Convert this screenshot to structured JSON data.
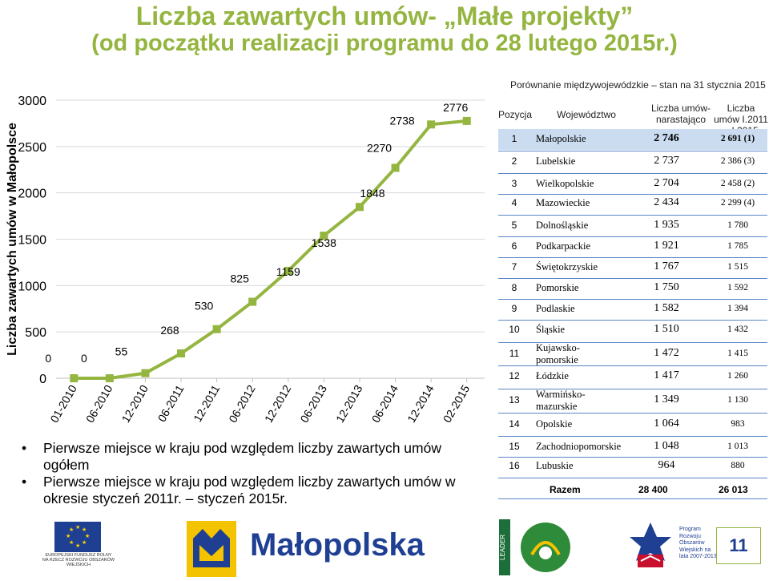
{
  "slide": {
    "title_line1": "Liczba zawartych umów- „Małe projekty”",
    "title_line2": "(od początku realizacji programu do 28 lutego 2015r.)",
    "page_number": "11"
  },
  "chart_data": {
    "type": "line",
    "ylabel": "Liczba zawartych umów w Małopolsce",
    "ylim": [
      0,
      3000
    ],
    "yticks": [
      0,
      500,
      1000,
      1500,
      2000,
      2500,
      3000
    ],
    "x": [
      "01-2010",
      "06-2010",
      "12-2010",
      "06-2011",
      "12-2011",
      "06-2012",
      "12-2012",
      "06-2013",
      "12-2013",
      "06-2014",
      "12-2014",
      "02-2015"
    ],
    "series": [
      {
        "color": "#94b53f",
        "values": [
          0,
          0,
          55,
          268,
          530,
          825,
          1159,
          1538,
          1848,
          2270,
          2738,
          2776
        ],
        "labels": [
          "0",
          "0",
          "55",
          "268",
          "530",
          "825",
          "1159",
          "1538",
          "1848",
          "2270",
          "2738",
          "2776"
        ]
      }
    ],
    "grid": true,
    "legend": "none"
  },
  "bullets": [
    "Pierwsze miejsce w kraju pod względem liczby zawartych umów ogółem",
    "Pierwsze miejsce w kraju pod względem liczby zawartych umów w okresie styczeń 2011r. – styczeń 2015r."
  ],
  "table": {
    "caption": "Porównanie międzywojewódzkie – stan na 31 stycznia 2015",
    "headers": {
      "position": "Pozycja",
      "voivodeship": "Województwo",
      "cumulative": "Liczba umów- narastająco",
      "period": "Liczba umów I.2011 – I.2015"
    },
    "rows": [
      {
        "pos": "1",
        "name": "Małopolskie",
        "cum": "2 746",
        "per": "2 691 (1)"
      },
      {
        "pos": "2",
        "name": "Lubelskie",
        "cum": "2 737",
        "per": "2 386 (3)"
      },
      {
        "pos": "3",
        "name": "Wielkopolskie",
        "cum": "2 704",
        "per": "2 458 (2)"
      },
      {
        "pos": "4",
        "name": "Mazowieckie",
        "cum": "2 434",
        "per": "2 299 (4)"
      },
      {
        "pos": "5",
        "name": "Dolnośląskie",
        "cum": "1 935",
        "per": "1 780"
      },
      {
        "pos": "6",
        "name": "Podkarpackie",
        "cum": "1 921",
        "per": "1 785"
      },
      {
        "pos": "7",
        "name": "Świętokrzyskie",
        "cum": "1 767",
        "per": "1 515"
      },
      {
        "pos": "8",
        "name": "Pomorskie",
        "cum": "1 750",
        "per": "1 592"
      },
      {
        "pos": "9",
        "name": "Podlaskie",
        "cum": "1 582",
        "per": "1 394"
      },
      {
        "pos": "10",
        "name": "Śląskie",
        "cum": "1 510",
        "per": "1 432"
      },
      {
        "pos": "11",
        "name": "Kujawsko-pomorskie",
        "cum": "1 472",
        "per": "1 415"
      },
      {
        "pos": "12",
        "name": "Łódzkie",
        "cum": "1 417",
        "per": "1 260"
      },
      {
        "pos": "13",
        "name": "Warmińsko-mazurskie",
        "cum": "1 349",
        "per": "1 130"
      },
      {
        "pos": "14",
        "name": "Opolskie",
        "cum": "1 064",
        "per": "983"
      },
      {
        "pos": "15",
        "name": "Zachodniopomorskie",
        "cum": "1 048",
        "per": "1 013"
      },
      {
        "pos": "16",
        "name": "Lubuskie",
        "cum": "964",
        "per": "880"
      }
    ],
    "total": {
      "label": "Razem",
      "cum": "28 400",
      "per": "26 013"
    }
  },
  "logos": {
    "eu_text": "EUROPEJSKI FUNDUSZ ROLNY NA RZECZ ROZWOJU OBSZARÓW WIEJSKICH",
    "malopolska_text": "Małopolska",
    "leader_text": "LEADER",
    "prow_text": "Program Rozwoju Obszarów Wiejskich na lata 2007-2013"
  },
  "colors": {
    "title": "#94b53f",
    "line": "#94b53f",
    "table_highlight": "#cbdcf0",
    "table_rule": "#5a86c6",
    "brand_blue": "#1f3f93"
  }
}
